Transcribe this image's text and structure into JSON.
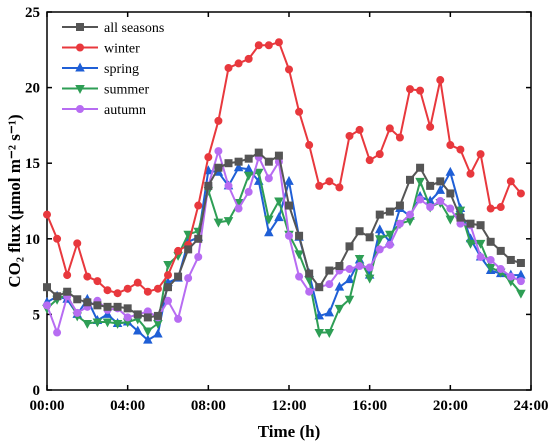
{
  "chart_data": {
    "type": "line",
    "xlabel": "Time (h)",
    "ylabel": "CO₂ flux (μmol m⁻² s⁻¹)",
    "xlim": [
      0,
      24
    ],
    "ylim": [
      0,
      25
    ],
    "x_ticks": [
      "00:00",
      "04:00",
      "08:00",
      "12:00",
      "16:00",
      "20:00",
      "24:00"
    ],
    "y_ticks": [
      "0",
      "5",
      "10",
      "15",
      "20",
      "25"
    ],
    "grid": false,
    "legend_position": "top-left",
    "x_hours": [
      0,
      0.5,
      1,
      1.5,
      2,
      2.5,
      3,
      3.5,
      4,
      4.5,
      5,
      5.5,
      6,
      6.5,
      7,
      7.5,
      8,
      8.5,
      9,
      9.5,
      10,
      10.5,
      11,
      11.5,
      12,
      12.5,
      13,
      13.5,
      14,
      14.5,
      15,
      15.5,
      16,
      16.5,
      17,
      17.5,
      18,
      18.5,
      19,
      19.5,
      20,
      20.5,
      21,
      21.5,
      22,
      22.5,
      23,
      23.5
    ],
    "series": [
      {
        "name": "all seasons",
        "color": "#555555",
        "marker": "square",
        "values": [
          6.8,
          6.2,
          6.5,
          6.0,
          5.8,
          5.6,
          5.5,
          5.5,
          5.4,
          5.0,
          4.8,
          4.9,
          6.8,
          7.5,
          9.3,
          10.0,
          13.5,
          14.7,
          15.0,
          15.1,
          15.3,
          15.7,
          15.1,
          15.5,
          12.2,
          10.2,
          7.7,
          6.8,
          7.9,
          8.2,
          9.5,
          10.5,
          10.1,
          11.6,
          11.8,
          12.2,
          13.9,
          14.7,
          13.5,
          13.8,
          13.0,
          11.4,
          11.0,
          10.9,
          9.8,
          9.2,
          8.6,
          8.4
        ]
      },
      {
        "name": "winter",
        "color": "#e8383d",
        "marker": "circle",
        "values": [
          11.6,
          10.0,
          7.6,
          9.7,
          7.5,
          7.2,
          6.6,
          6.4,
          6.7,
          7.1,
          6.5,
          6.7,
          7.6,
          9.2,
          9.6,
          12.2,
          15.4,
          17.8,
          21.3,
          21.6,
          21.9,
          22.8,
          22.8,
          23.0,
          21.2,
          18.4,
          16.2,
          13.5,
          13.8,
          13.4,
          16.8,
          17.2,
          15.2,
          15.6,
          17.3,
          16.7,
          19.9,
          19.8,
          17.4,
          20.5,
          16.2,
          15.9,
          14.3,
          15.6,
          12.0,
          12.1,
          13.8,
          13.0
        ]
      },
      {
        "name": "spring",
        "color": "#1f5fd6",
        "marker": "triangle-up",
        "values": [
          5.8,
          6.2,
          6.0,
          5.0,
          6.0,
          4.6,
          5.0,
          4.4,
          4.5,
          3.9,
          3.3,
          3.7,
          7.1,
          7.4,
          9.8,
          10.1,
          14.5,
          14.4,
          13.5,
          14.7,
          14.6,
          13.8,
          10.4,
          11.4,
          13.8,
          10.1,
          7.7,
          4.9,
          5.1,
          6.8,
          7.3,
          8.6,
          7.6,
          10.6,
          9.8,
          12.0,
          11.5,
          12.8,
          12.5,
          13.2,
          14.4,
          12.0,
          10.0,
          8.8,
          7.9,
          7.7,
          7.6,
          7.6
        ]
      },
      {
        "name": "summer",
        "color": "#2e9e55",
        "marker": "triangle-down",
        "values": [
          5.4,
          6.0,
          6.3,
          4.9,
          4.4,
          4.5,
          4.5,
          4.4,
          4.5,
          4.7,
          3.9,
          4.4,
          8.3,
          8.9,
          10.3,
          10.5,
          13.2,
          11.1,
          11.2,
          12.4,
          14.2,
          14.4,
          11.3,
          12.5,
          10.3,
          9.0,
          7.3,
          3.8,
          3.8,
          5.4,
          6.0,
          8.7,
          7.4,
          10.0,
          10.3,
          11.0,
          11.2,
          13.8,
          12.1,
          12.4,
          11.3,
          11.9,
          9.7,
          9.7,
          8.1,
          7.8,
          7.2,
          6.4
        ]
      },
      {
        "name": "autumn",
        "color": "#b76cf2",
        "marker": "circle",
        "values": [
          5.6,
          3.8,
          6.2,
          5.1,
          5.5,
          5.9,
          5.3,
          5.4,
          4.8,
          5.0,
          5.2,
          4.8,
          5.9,
          4.7,
          7.4,
          8.8,
          13.5,
          15.8,
          13.5,
          12.0,
          13.1,
          15.4,
          14.0,
          15.1,
          10.2,
          7.5,
          6.5,
          6.8,
          7.0,
          7.9,
          8.0,
          8.2,
          8.1,
          9.3,
          9.6,
          11.0,
          11.6,
          12.6,
          12.1,
          12.5,
          12.0,
          11.0,
          10.9,
          8.8,
          8.6,
          8.0,
          7.5,
          7.2
        ]
      }
    ]
  }
}
